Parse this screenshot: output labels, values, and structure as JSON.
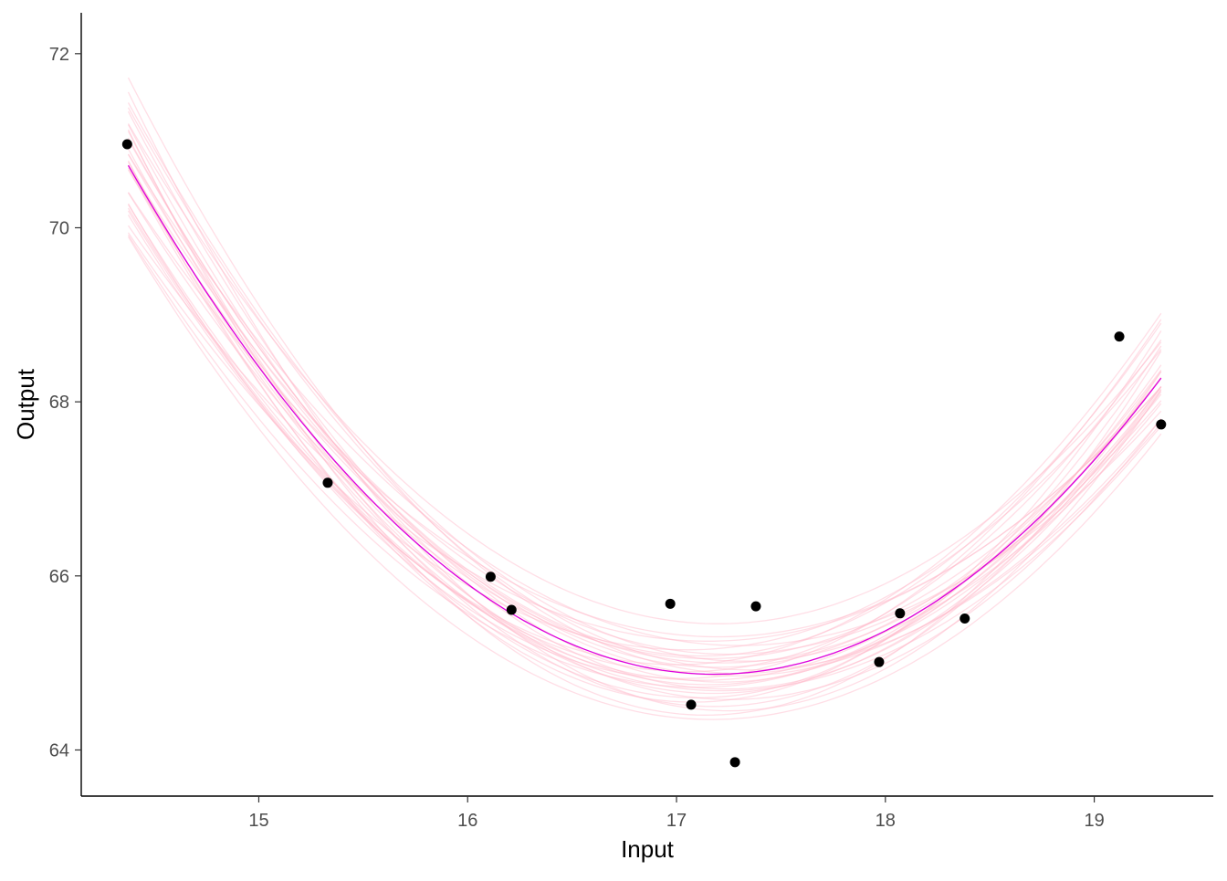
{
  "chart_data": {
    "type": "scatter",
    "title": "",
    "xlabel": "Input",
    "ylabel": "Output",
    "xlim": [
      14.15,
      19.57
    ],
    "ylim": [
      63.47,
      72.47
    ],
    "xticks": [
      15,
      16,
      17,
      18,
      19
    ],
    "yticks": [
      64,
      66,
      68,
      70,
      72
    ],
    "grid": false,
    "points": {
      "x": [
        14.37,
        15.33,
        16.11,
        16.21,
        16.97,
        17.07,
        17.28,
        17.38,
        17.97,
        18.07,
        18.38,
        19.12,
        19.32
      ],
      "y": [
        70.96,
        67.07,
        65.99,
        65.61,
        65.68,
        64.52,
        63.86,
        65.65,
        65.01,
        65.57,
        65.51,
        68.75,
        67.74
      ],
      "color": "#000000"
    },
    "fit": {
      "form": "a*(x-h)^2+k",
      "a": 0.743,
      "h": 17.18,
      "k": 64.87,
      "x_range": [
        14.375,
        19.32
      ],
      "color": "#DD00DD"
    },
    "draws": {
      "color": "#FFB6C8",
      "params": [
        [
          0.743,
          17.18,
          64.87
        ],
        [
          0.78,
          17.15,
          64.75
        ],
        [
          0.7,
          17.22,
          65.0
        ],
        [
          0.82,
          17.1,
          64.6
        ],
        [
          0.68,
          17.25,
          65.1
        ],
        [
          0.76,
          17.2,
          64.95
        ],
        [
          0.72,
          17.12,
          64.8
        ],
        [
          0.79,
          17.24,
          64.7
        ],
        [
          0.66,
          17.3,
          65.2
        ],
        [
          0.85,
          17.08,
          64.55
        ],
        [
          0.74,
          17.05,
          64.9
        ],
        [
          0.71,
          17.28,
          64.85
        ],
        [
          0.77,
          17.18,
          64.65
        ],
        [
          0.69,
          17.16,
          65.05
        ],
        [
          0.81,
          17.22,
          64.78
        ],
        [
          0.73,
          17.35,
          64.92
        ],
        [
          0.75,
          17.0,
          64.98
        ],
        [
          0.64,
          17.2,
          65.3
        ],
        [
          0.88,
          17.14,
          64.4
        ],
        [
          0.7,
          17.1,
          64.72
        ],
        [
          0.8,
          17.3,
          64.88
        ],
        [
          0.67,
          17.05,
          65.15
        ],
        [
          0.76,
          17.26,
          64.58
        ],
        [
          0.72,
          17.2,
          65.45
        ],
        [
          0.84,
          17.18,
          64.5
        ],
        [
          0.62,
          17.15,
          65.25
        ],
        [
          0.78,
          17.02,
          64.82
        ],
        [
          0.74,
          17.32,
          65.02
        ],
        [
          0.69,
          17.22,
          64.68
        ],
        [
          0.86,
          17.25,
          64.45
        ],
        [
          0.71,
          17.17,
          64.35
        ],
        [
          0.79,
          17.12,
          65.08
        ]
      ]
    }
  }
}
